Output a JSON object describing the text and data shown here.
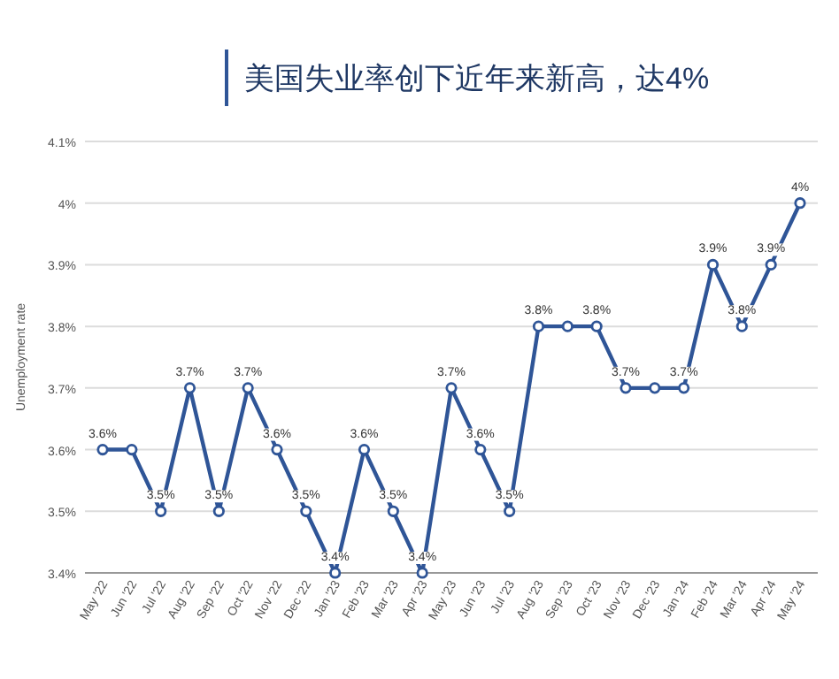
{
  "chart_data": {
    "type": "line",
    "title": "美国失业率创下近年来新高，达4%",
    "ylabel": "Unemployment rate",
    "categories": [
      "May '22",
      "Jun '22",
      "Jul '22",
      "Aug '22",
      "Sep '22",
      "Oct '22",
      "Nov '22",
      "Dec '22",
      "Jan '23",
      "Feb '23",
      "Mar '23",
      "Apr '23",
      "May '23",
      "Jun '23",
      "Jul '23",
      "Aug '23",
      "Sep '23",
      "Oct '23",
      "Nov '23",
      "Dec '23",
      "Jan '24",
      "Feb '24",
      "Mar '24",
      "Apr '24",
      "May '24"
    ],
    "series": [
      {
        "color": "#2f5597",
        "values": [
          3.6,
          3.6,
          3.5,
          3.7,
          3.5,
          3.7,
          3.6,
          3.5,
          3.4,
          3.6,
          3.5,
          3.4,
          3.7,
          3.6,
          3.5,
          3.8,
          3.8,
          3.8,
          3.7,
          3.7,
          3.7,
          3.9,
          3.8,
          3.9,
          4.0
        ],
        "value_labels": [
          "3.6%",
          null,
          "3.5%",
          "3.7%",
          "3.5%",
          "3.7%",
          "3.6%",
          "3.5%",
          "3.4%",
          "3.6%",
          "3.5%",
          "3.4%",
          "3.7%",
          "3.6%",
          "3.5%",
          "3.8%",
          null,
          "3.8%",
          "3.7%",
          null,
          "3.7%",
          "3.9%",
          "3.8%",
          "3.9%",
          "4%"
        ]
      }
    ],
    "ylim": [
      3.4,
      4.1
    ],
    "yticks": [
      {
        "value": 3.4,
        "label": "3.4%"
      },
      {
        "value": 3.5,
        "label": "3.5%"
      },
      {
        "value": 3.6,
        "label": "3.6%"
      },
      {
        "value": 3.7,
        "label": "3.7%"
      },
      {
        "value": 3.8,
        "label": "3.8%"
      },
      {
        "value": 3.9,
        "label": "3.9%"
      },
      {
        "value": 4.0,
        "label": "4%"
      },
      {
        "value": 4.1,
        "label": "4.1%"
      }
    ],
    "grid": "y",
    "marker": "circle",
    "line_style": "solid"
  }
}
